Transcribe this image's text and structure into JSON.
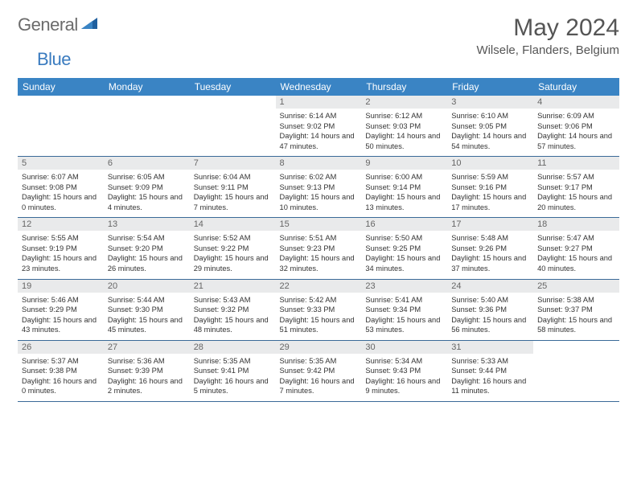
{
  "logo": {
    "text1": "General",
    "text2": "Blue"
  },
  "title": "May 2024",
  "location": "Wilsele, Flanders, Belgium",
  "colors": {
    "header_bg": "#3a84c4",
    "header_text": "#ffffff",
    "daynum_bg": "#e9eaeb",
    "daynum_text": "#666666",
    "content_text": "#333333",
    "row_border": "#3a6a98",
    "logo_gray": "#6b6b6b",
    "logo_blue": "#3a7bbf"
  },
  "typography": {
    "title_fontsize": 30,
    "location_fontsize": 15,
    "header_fontsize": 12,
    "daynum_fontsize": 11,
    "content_fontsize": 9.3
  },
  "weekdays": [
    "Sunday",
    "Monday",
    "Tuesday",
    "Wednesday",
    "Thursday",
    "Friday",
    "Saturday"
  ],
  "weeks": [
    [
      {
        "empty": true
      },
      {
        "empty": true
      },
      {
        "empty": true
      },
      {
        "num": "1",
        "sunrise": "6:14 AM",
        "sunset": "9:02 PM",
        "daylight": "14 hours and 47 minutes."
      },
      {
        "num": "2",
        "sunrise": "6:12 AM",
        "sunset": "9:03 PM",
        "daylight": "14 hours and 50 minutes."
      },
      {
        "num": "3",
        "sunrise": "6:10 AM",
        "sunset": "9:05 PM",
        "daylight": "14 hours and 54 minutes."
      },
      {
        "num": "4",
        "sunrise": "6:09 AM",
        "sunset": "9:06 PM",
        "daylight": "14 hours and 57 minutes."
      }
    ],
    [
      {
        "num": "5",
        "sunrise": "6:07 AM",
        "sunset": "9:08 PM",
        "daylight": "15 hours and 0 minutes."
      },
      {
        "num": "6",
        "sunrise": "6:05 AM",
        "sunset": "9:09 PM",
        "daylight": "15 hours and 4 minutes."
      },
      {
        "num": "7",
        "sunrise": "6:04 AM",
        "sunset": "9:11 PM",
        "daylight": "15 hours and 7 minutes."
      },
      {
        "num": "8",
        "sunrise": "6:02 AM",
        "sunset": "9:13 PM",
        "daylight": "15 hours and 10 minutes."
      },
      {
        "num": "9",
        "sunrise": "6:00 AM",
        "sunset": "9:14 PM",
        "daylight": "15 hours and 13 minutes."
      },
      {
        "num": "10",
        "sunrise": "5:59 AM",
        "sunset": "9:16 PM",
        "daylight": "15 hours and 17 minutes."
      },
      {
        "num": "11",
        "sunrise": "5:57 AM",
        "sunset": "9:17 PM",
        "daylight": "15 hours and 20 minutes."
      }
    ],
    [
      {
        "num": "12",
        "sunrise": "5:55 AM",
        "sunset": "9:19 PM",
        "daylight": "15 hours and 23 minutes."
      },
      {
        "num": "13",
        "sunrise": "5:54 AM",
        "sunset": "9:20 PM",
        "daylight": "15 hours and 26 minutes."
      },
      {
        "num": "14",
        "sunrise": "5:52 AM",
        "sunset": "9:22 PM",
        "daylight": "15 hours and 29 minutes."
      },
      {
        "num": "15",
        "sunrise": "5:51 AM",
        "sunset": "9:23 PM",
        "daylight": "15 hours and 32 minutes."
      },
      {
        "num": "16",
        "sunrise": "5:50 AM",
        "sunset": "9:25 PM",
        "daylight": "15 hours and 34 minutes."
      },
      {
        "num": "17",
        "sunrise": "5:48 AM",
        "sunset": "9:26 PM",
        "daylight": "15 hours and 37 minutes."
      },
      {
        "num": "18",
        "sunrise": "5:47 AM",
        "sunset": "9:27 PM",
        "daylight": "15 hours and 40 minutes."
      }
    ],
    [
      {
        "num": "19",
        "sunrise": "5:46 AM",
        "sunset": "9:29 PM",
        "daylight": "15 hours and 43 minutes."
      },
      {
        "num": "20",
        "sunrise": "5:44 AM",
        "sunset": "9:30 PM",
        "daylight": "15 hours and 45 minutes."
      },
      {
        "num": "21",
        "sunrise": "5:43 AM",
        "sunset": "9:32 PM",
        "daylight": "15 hours and 48 minutes."
      },
      {
        "num": "22",
        "sunrise": "5:42 AM",
        "sunset": "9:33 PM",
        "daylight": "15 hours and 51 minutes."
      },
      {
        "num": "23",
        "sunrise": "5:41 AM",
        "sunset": "9:34 PM",
        "daylight": "15 hours and 53 minutes."
      },
      {
        "num": "24",
        "sunrise": "5:40 AM",
        "sunset": "9:36 PM",
        "daylight": "15 hours and 56 minutes."
      },
      {
        "num": "25",
        "sunrise": "5:38 AM",
        "sunset": "9:37 PM",
        "daylight": "15 hours and 58 minutes."
      }
    ],
    [
      {
        "num": "26",
        "sunrise": "5:37 AM",
        "sunset": "9:38 PM",
        "daylight": "16 hours and 0 minutes."
      },
      {
        "num": "27",
        "sunrise": "5:36 AM",
        "sunset": "9:39 PM",
        "daylight": "16 hours and 2 minutes."
      },
      {
        "num": "28",
        "sunrise": "5:35 AM",
        "sunset": "9:41 PM",
        "daylight": "16 hours and 5 minutes."
      },
      {
        "num": "29",
        "sunrise": "5:35 AM",
        "sunset": "9:42 PM",
        "daylight": "16 hours and 7 minutes."
      },
      {
        "num": "30",
        "sunrise": "5:34 AM",
        "sunset": "9:43 PM",
        "daylight": "16 hours and 9 minutes."
      },
      {
        "num": "31",
        "sunrise": "5:33 AM",
        "sunset": "9:44 PM",
        "daylight": "16 hours and 11 minutes."
      },
      {
        "empty": true
      }
    ]
  ],
  "labels": {
    "sunrise": "Sunrise:",
    "sunset": "Sunset:",
    "daylight": "Daylight:"
  }
}
